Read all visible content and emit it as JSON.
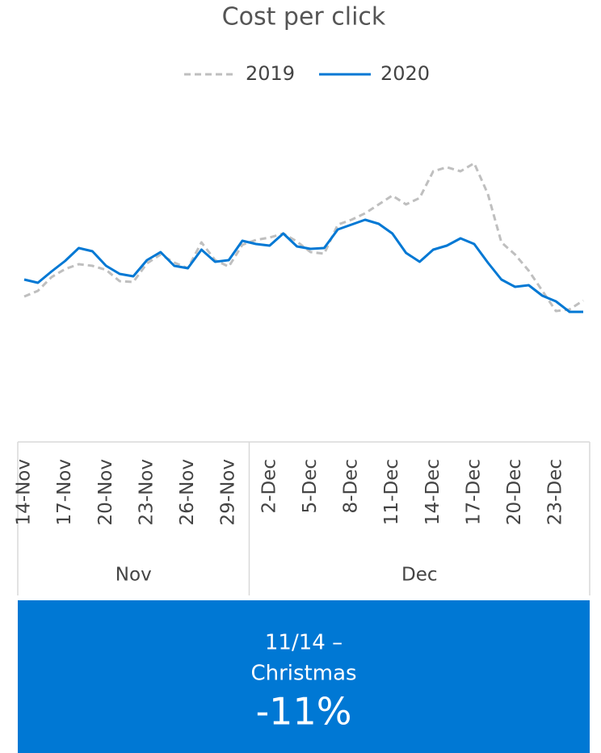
{
  "chart_data": {
    "type": "line",
    "title": "Cost per click",
    "categories": [
      "14-Nov",
      null,
      null,
      "17-Nov",
      null,
      null,
      "20-Nov",
      null,
      null,
      "23-Nov",
      null,
      null,
      "26-Nov",
      null,
      null,
      "29-Nov",
      null,
      null,
      "2-Dec",
      null,
      null,
      "5-Dec",
      null,
      null,
      "8-Dec",
      null,
      null,
      "11-Dec",
      null,
      null,
      "14-Dec",
      null,
      null,
      "17-Dec",
      null,
      null,
      "20-Dec",
      null,
      null,
      "23-Dec",
      null,
      null
    ],
    "groups": [
      {
        "label": "Nov",
        "count": 17
      },
      {
        "label": "Dec",
        "count": 25
      }
    ],
    "series": [
      {
        "name": "2019",
        "color": "#bfbfbf",
        "dashed": true,
        "values": [
          133,
          140,
          157,
          167,
          173,
          171,
          166,
          152,
          151,
          174,
          185,
          175,
          168,
          200,
          178,
          170,
          197,
          203,
          206,
          211,
          201,
          188,
          186,
          222,
          228,
          236,
          247,
          258,
          247,
          255,
          288,
          293,
          288,
          298,
          260,
          200,
          185,
          165,
          140,
          115,
          117,
          128
        ]
      },
      {
        "name": "2020",
        "color": "#0078d4",
        "dashed": false,
        "values": [
          154,
          150,
          164,
          177,
          193,
          189,
          171,
          161,
          158,
          178,
          188,
          171,
          168,
          191,
          176,
          178,
          202,
          198,
          196,
          211,
          195,
          192,
          193,
          216,
          222,
          228,
          223,
          211,
          187,
          176,
          191,
          196,
          205,
          198,
          175,
          154,
          145,
          147,
          134,
          127,
          114,
          114
        ]
      }
    ],
    "legend": "top"
  },
  "callout": {
    "lines": [
      "11/14 –",
      "Christmas"
    ],
    "change": "-11%"
  }
}
